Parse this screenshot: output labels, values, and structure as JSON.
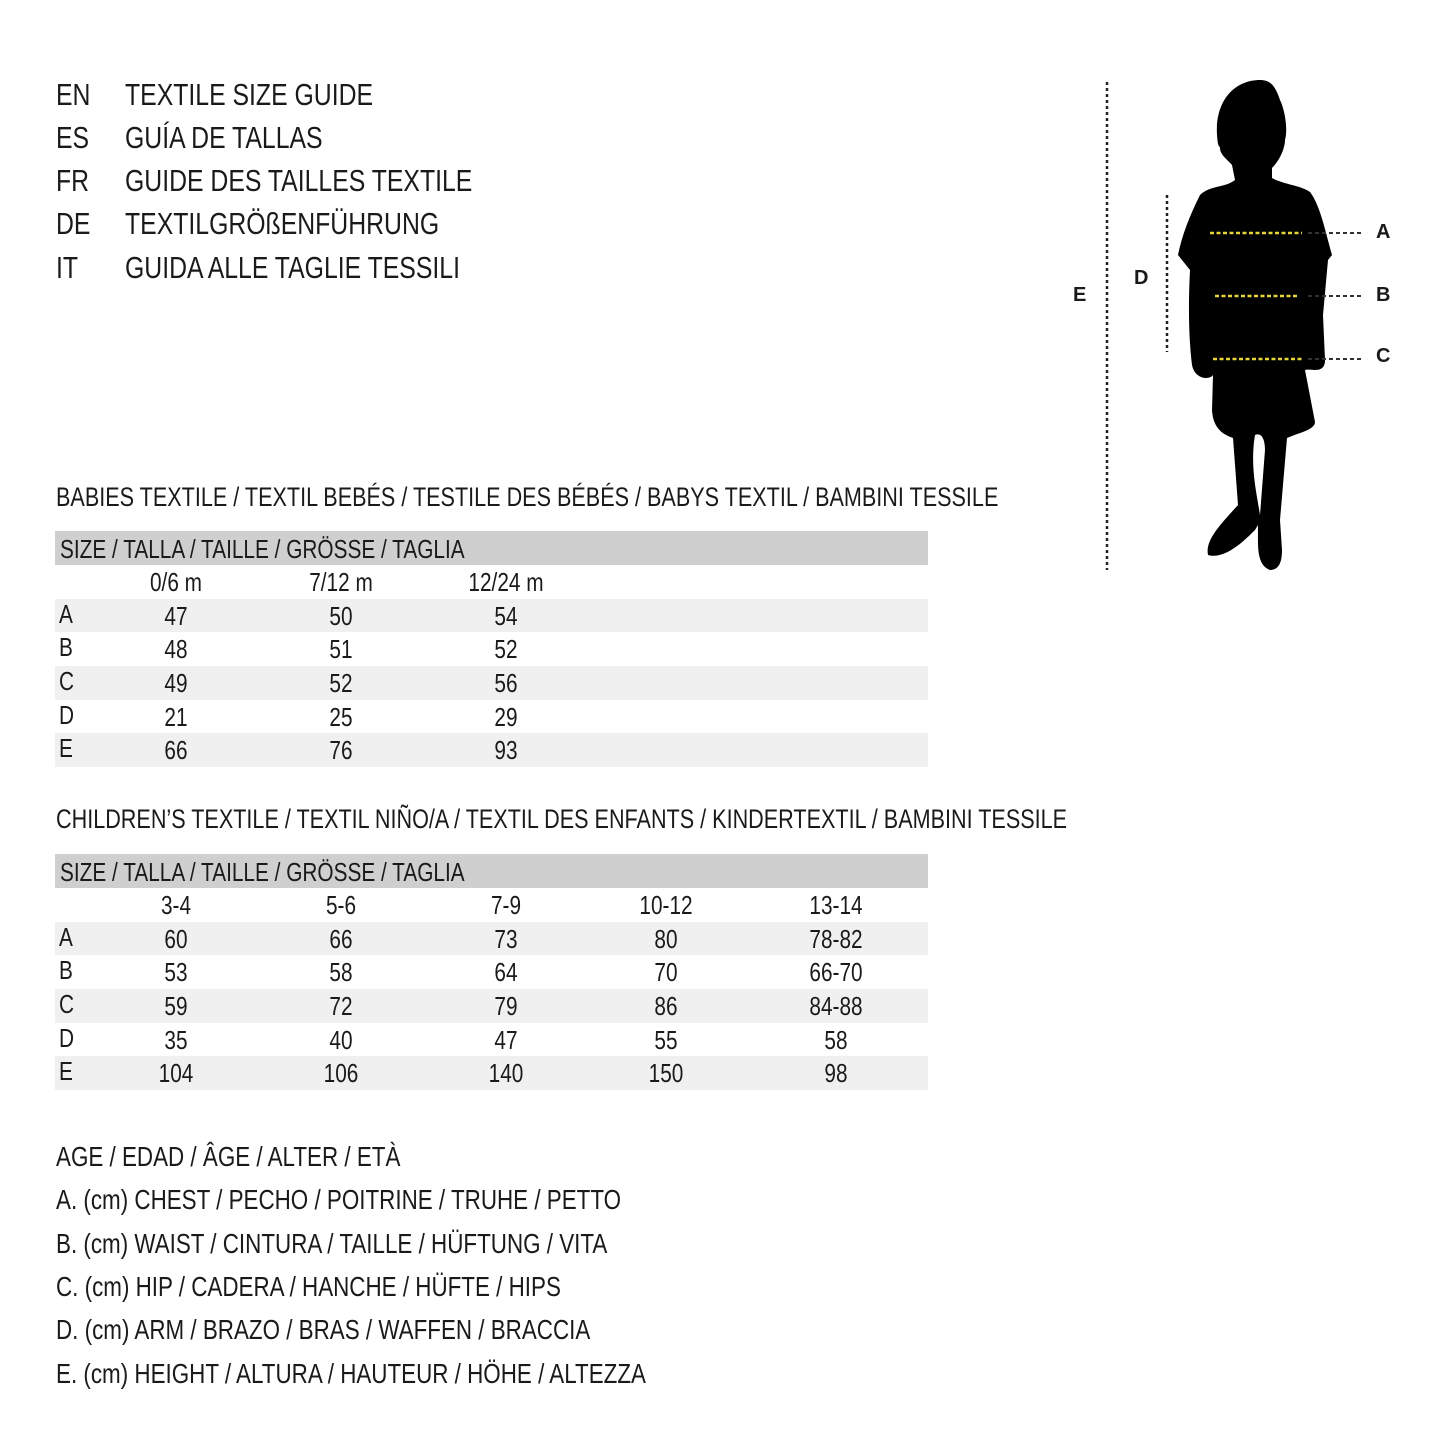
{
  "titles": [
    {
      "code": "EN",
      "text": "TEXTILE SIZE GUIDE"
    },
    {
      "code": "ES",
      "text": "GUÍA DE TALLAS"
    },
    {
      "code": "FR",
      "text": "GUIDE DES TAILLES TEXTILE"
    },
    {
      "code": "DE",
      "text": "TEXTILGRÖßENFÜHRUNG"
    },
    {
      "code": "IT",
      "text": "GUIDA ALLE TAGLIE TESSILI"
    }
  ],
  "diagram": {
    "labels": {
      "A": "A",
      "B": "B",
      "C": "C",
      "D": "D",
      "E": "E"
    },
    "silhouette_color": "#000000",
    "measure_line_color": "#e8d43a"
  },
  "babies": {
    "section_title": "BABIES TEXTILE / TEXTIL BEBÉS / TESTILE DES BÉBÉS / BABYS TEXTIL / BAMBINI TESSILE",
    "header": "SIZE / TALLA / TAILLE / GRÖSSE / TAGLIA",
    "columns": [
      "0/6 m",
      "7/12 m",
      "12/24 m"
    ],
    "rows": [
      {
        "label": "A",
        "values": [
          "47",
          "50",
          "54"
        ]
      },
      {
        "label": "B",
        "values": [
          "48",
          "51",
          "52"
        ]
      },
      {
        "label": "C",
        "values": [
          "49",
          "52",
          "56"
        ]
      },
      {
        "label": "D",
        "values": [
          "21",
          "25",
          "29"
        ]
      },
      {
        "label": "E",
        "values": [
          "66",
          "76",
          "93"
        ]
      }
    ]
  },
  "children": {
    "section_title": "CHILDREN’S TEXTILE / TEXTIL NIÑO/A / TEXTIL DES ENFANTS / KINDERTEXTIL / BAMBINI TESSILE",
    "header": "SIZE / TALLA / TAILLE / GRÖSSE / TAGLIA",
    "columns": [
      "3-4",
      "5-6",
      "7-9",
      "10-12",
      "13-14"
    ],
    "rows": [
      {
        "label": "A",
        "values": [
          "60",
          "66",
          "73",
          "80",
          "78-82"
        ]
      },
      {
        "label": "B",
        "values": [
          "53",
          "58",
          "64",
          "70",
          "66-70"
        ]
      },
      {
        "label": "C",
        "values": [
          "59",
          "72",
          "79",
          "86",
          "84-88"
        ]
      },
      {
        "label": "D",
        "values": [
          "35",
          "40",
          "47",
          "55",
          "58"
        ]
      },
      {
        "label": "E",
        "values": [
          "104",
          "106",
          "140",
          "150",
          "98"
        ]
      }
    ]
  },
  "legend": [
    "AGE / EDAD / ÂGE / ALTER / ETÀ",
    "A. (cm) CHEST / PECHO / POITRINE / TRUHE / PETTO",
    "B. (cm) WAIST / CINTURA / TAILLE / HÜFTUNG / VITA",
    "C. (cm) HIP / CADERA / HANCHE / HÜFTE / HIPS",
    "D. (cm) ARM / BRAZO / BRAS / WAFFEN / BRACCIA",
    "E. (cm) HEIGHT / ALTURA / HAUTEUR / HÖHE / ALTEZZA"
  ],
  "colors": {
    "header_bar": "#cfcfcf",
    "row_stripe": "#f0f0f0"
  }
}
